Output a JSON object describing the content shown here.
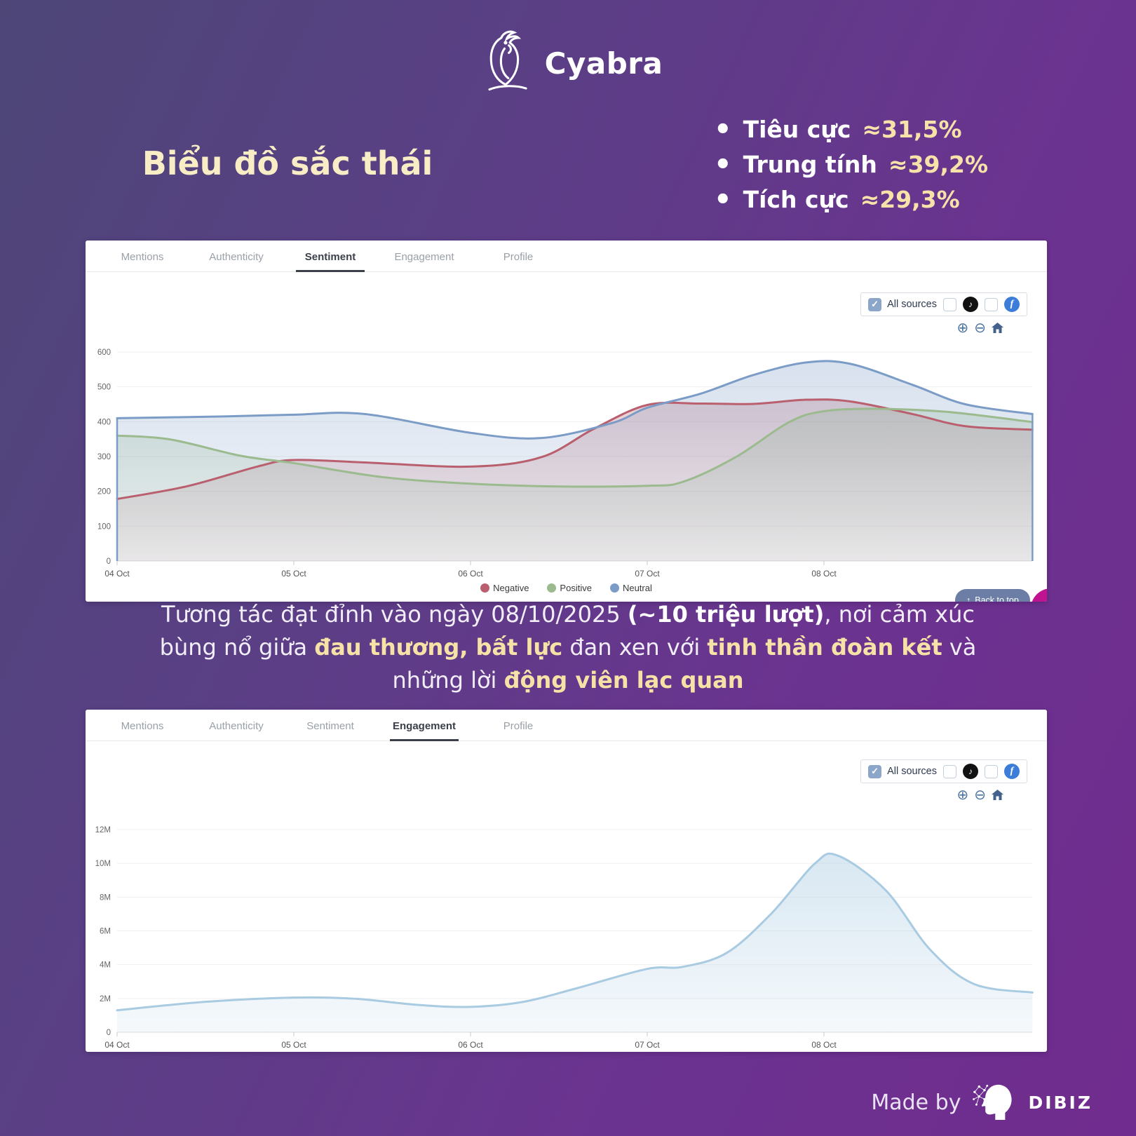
{
  "colors": {
    "background_top": "#4d4677",
    "background_bottom": "#702c8e",
    "title_cream": "#f9edc6",
    "highlight_cream": "#f6e2a6",
    "negative_red": "#b95f6e",
    "positive_green": "#9bba8e",
    "neutral_blue": "#7b9cc6",
    "engagement_blue": "#a9cbe2",
    "tiktok_black": "#111111",
    "facebook_blue": "#3b7dd8",
    "checkbox_checked": "#8ba6c9",
    "back_to_top_bg": "#6c7ea6",
    "chat_bubble_pink": "#bf1390"
  },
  "header": {
    "brand": "Cyabra"
  },
  "title": "Biểu đồ sắc thái",
  "stats": [
    {
      "bullet": "•",
      "label": "Tiêu cực",
      "value": "≈31,5%"
    },
    {
      "bullet": "•",
      "label": "Trung tính",
      "value": "≈39,2%"
    },
    {
      "bullet": "•",
      "label": "Tích cực",
      "value": "≈29,3%"
    }
  ],
  "tabs": [
    "Mentions",
    "Authenticity",
    "Sentiment",
    "Engagement",
    "Profile"
  ],
  "controls": {
    "all_sources": "All sources",
    "check_glyph": "✓",
    "zoom_in": "⊕",
    "zoom_out": "⊖",
    "tiktok_glyph": "♪",
    "facebook_glyph": "f"
  },
  "back_to_top": {
    "icon": "↑",
    "label": "Back to top"
  },
  "paragraph": {
    "lines": [
      [
        {
          "t": "Tương tác đạt đỉnh vào ngày 08/10/2025 ",
          "s": "normal"
        },
        {
          "t": "(~10 triệu lượt)",
          "s": "bold-white"
        },
        {
          "t": ", nơi cảm xúc",
          "s": "normal"
        }
      ],
      [
        {
          "t": "bùng nổ giữa ",
          "s": "normal"
        },
        {
          "t": "đau thương, bất lực",
          "s": "bold-cream"
        },
        {
          "t": " đan xen với ",
          "s": "normal"
        },
        {
          "t": "tinh thần đoàn kết",
          "s": "bold-cream"
        },
        {
          "t": " và",
          "s": "normal"
        }
      ],
      [
        {
          "t": "những lời ",
          "s": "normal"
        },
        {
          "t": "động viên lạc quan",
          "s": "bold-cream"
        }
      ]
    ]
  },
  "footer": {
    "made_by": "Made by",
    "brand": "DIBIZ"
  },
  "chart_data": [
    {
      "type": "area",
      "name": "sentiment-over-time",
      "active_tab": "Sentiment",
      "grid": "horizontal",
      "legend_position": "bottom",
      "x_axis": {
        "unit": "date",
        "range": [
          0,
          5.18
        ],
        "ticks": [
          {
            "x": 0,
            "label": "04 Oct"
          },
          {
            "x": 1,
            "label": "05 Oct"
          },
          {
            "x": 2,
            "label": "06 Oct"
          },
          {
            "x": 3,
            "label": "07 Oct"
          },
          {
            "x": 4,
            "label": "08 Oct"
          }
        ]
      },
      "y_axis": {
        "range": [
          0,
          600
        ],
        "ticks": [
          {
            "v": 0,
            "label": "0"
          },
          {
            "v": 100,
            "label": "100"
          },
          {
            "v": 200,
            "label": "200"
          },
          {
            "v": 300,
            "label": "300"
          },
          {
            "v": 400,
            "label": "400"
          },
          {
            "v": 500,
            "label": "500"
          },
          {
            "v": 600,
            "label": "600"
          }
        ]
      },
      "series": [
        {
          "name": "Negative",
          "color": "#b95f6e",
          "points": [
            [
              0,
              178
            ],
            [
              0.4,
              215
            ],
            [
              0.8,
              272
            ],
            [
              1,
              290
            ],
            [
              1.4,
              283
            ],
            [
              2,
              271
            ],
            [
              2.4,
              298
            ],
            [
              2.7,
              380
            ],
            [
              3,
              448
            ],
            [
              3.3,
              452
            ],
            [
              3.6,
              451
            ],
            [
              3.9,
              463
            ],
            [
              4.15,
              458
            ],
            [
              4.5,
              422
            ],
            [
              4.8,
              387
            ],
            [
              5.18,
              377
            ]
          ]
        },
        {
          "name": "Positive",
          "color": "#9bba8e",
          "points": [
            [
              0,
              360
            ],
            [
              0.3,
              349
            ],
            [
              0.7,
              302
            ],
            [
              1,
              281
            ],
            [
              1.5,
              241
            ],
            [
              2,
              222
            ],
            [
              2.5,
              214
            ],
            [
              3,
              216
            ],
            [
              3.2,
              227
            ],
            [
              3.5,
              298
            ],
            [
              3.8,
              398
            ],
            [
              4,
              430
            ],
            [
              4.3,
              437
            ],
            [
              4.7,
              428
            ],
            [
              5.18,
              399
            ]
          ]
        },
        {
          "name": "Neutral",
          "color": "#7b9cc6",
          "edge_stroke": true,
          "points": [
            [
              0,
              410
            ],
            [
              0.6,
              415
            ],
            [
              1,
              420
            ],
            [
              1.4,
              422
            ],
            [
              2,
              368
            ],
            [
              2.4,
              353
            ],
            [
              2.8,
              396
            ],
            [
              3,
              440
            ],
            [
              3.3,
              480
            ],
            [
              3.6,
              534
            ],
            [
              3.9,
              570
            ],
            [
              4.15,
              566
            ],
            [
              4.5,
              506
            ],
            [
              4.8,
              450
            ],
            [
              5.18,
              422
            ]
          ]
        }
      ]
    },
    {
      "type": "area",
      "name": "engagement-over-time",
      "active_tab": "Engagement",
      "grid": "horizontal",
      "x_axis": {
        "unit": "date",
        "range": [
          0,
          5.18
        ],
        "ticks": [
          {
            "x": 0,
            "label": "04 Oct"
          },
          {
            "x": 1,
            "label": "05 Oct"
          },
          {
            "x": 2,
            "label": "06 Oct"
          },
          {
            "x": 3,
            "label": "07 Oct"
          },
          {
            "x": 4,
            "label": "08 Oct"
          }
        ]
      },
      "y_axis": {
        "unit": "millions",
        "range": [
          0,
          12
        ],
        "ticks": [
          {
            "v": 0,
            "label": "0"
          },
          {
            "v": 2,
            "label": "2M"
          },
          {
            "v": 4,
            "label": "4M"
          },
          {
            "v": 6,
            "label": "6M"
          },
          {
            "v": 8,
            "label": "8M"
          },
          {
            "v": 10,
            "label": "10M"
          },
          {
            "v": 12,
            "label": "12M"
          }
        ]
      },
      "series": [
        {
          "name": "Engagement",
          "color": "#a9cbe2",
          "points": [
            [
              0,
              1.3
            ],
            [
              0.5,
              1.8
            ],
            [
              1,
              2.05
            ],
            [
              1.35,
              1.98
            ],
            [
              1.7,
              1.62
            ],
            [
              2,
              1.5
            ],
            [
              2.3,
              1.8
            ],
            [
              2.6,
              2.6
            ],
            [
              3,
              3.75
            ],
            [
              3.2,
              3.87
            ],
            [
              3.45,
              4.7
            ],
            [
              3.7,
              7.0
            ],
            [
              3.95,
              10.0
            ],
            [
              4.08,
              10.45
            ],
            [
              4.35,
              8.4
            ],
            [
              4.6,
              4.9
            ],
            [
              4.85,
              2.85
            ],
            [
              5.18,
              2.35
            ]
          ]
        }
      ]
    }
  ]
}
